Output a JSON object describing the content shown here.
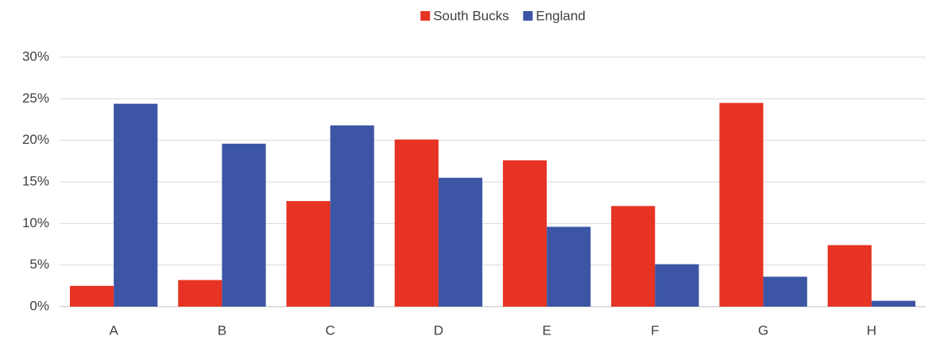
{
  "chart_data": {
    "type": "bar",
    "categories": [
      "A",
      "B",
      "C",
      "D",
      "E",
      "F",
      "G",
      "H"
    ],
    "series": [
      {
        "name": "South Bucks",
        "color": "#e63323",
        "values": [
          2.5,
          3.2,
          12.7,
          20.1,
          17.6,
          12.1,
          24.5,
          7.4
        ]
      },
      {
        "name": "England",
        "color": "#3c56a5",
        "values": [
          24.4,
          19.6,
          21.8,
          15.5,
          9.6,
          5.1,
          3.6,
          0.7
        ]
      }
    ],
    "ylim": [
      0,
      30
    ],
    "yticks": [
      {
        "value": 0,
        "label": "0%"
      },
      {
        "value": 5,
        "label": "5%"
      },
      {
        "value": 10,
        "label": "10%"
      },
      {
        "value": 15,
        "label": "15%"
      },
      {
        "value": 20,
        "label": "20%"
      },
      {
        "value": 25,
        "label": "25%"
      },
      {
        "value": 30,
        "label": "30%"
      }
    ],
    "grid": true,
    "legend": "top"
  }
}
